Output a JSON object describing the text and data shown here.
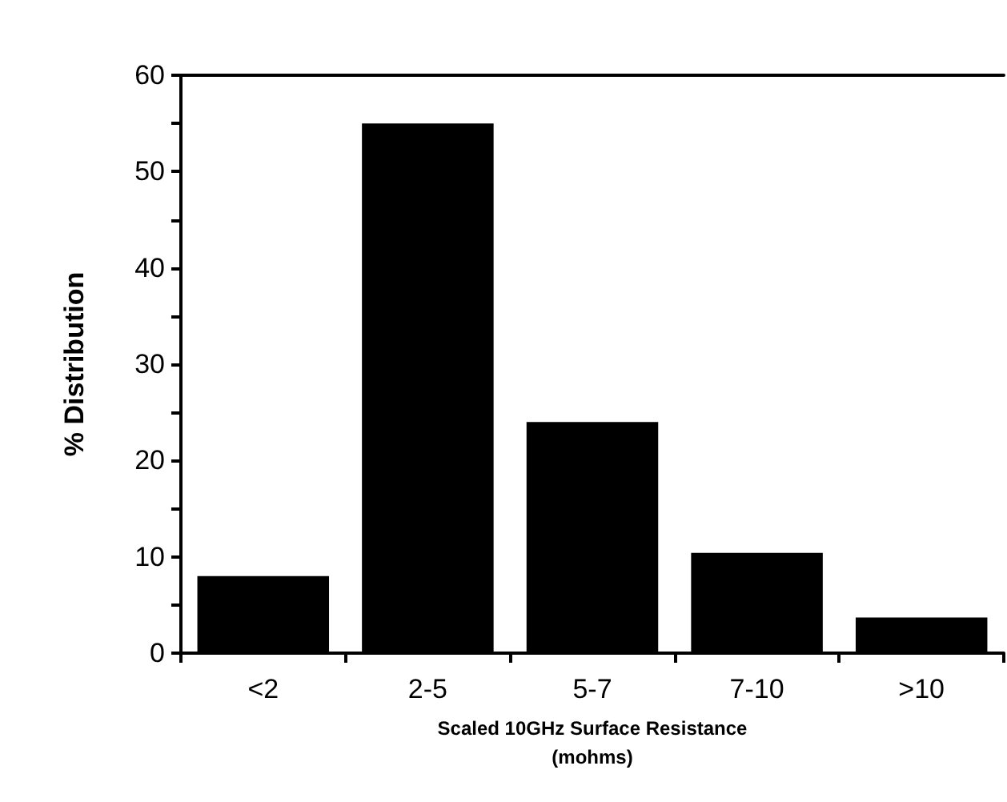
{
  "chart_data": {
    "type": "bar",
    "xlabel": "Scaled 10GHz Surface Resistance\n(mohms)",
    "ylabel": "% Distribution",
    "categories": [
      "<2",
      "2-5",
      "5-7",
      "7-10",
      ">10"
    ],
    "values": [
      8,
      55,
      24,
      10.4,
      3.7
    ],
    "color": "#000000",
    "ylim": [
      0,
      60
    ],
    "yticks": [
      0,
      {
        "value": 5,
        "label": null
      },
      10,
      {
        "value": 15,
        "label": null
      },
      20,
      {
        "value": 25,
        "label": null
      },
      30,
      {
        "value": 35,
        "label": null
      },
      40,
      {
        "value": 45,
        "label": null
      },
      50,
      {
        "value": 55,
        "label": null
      },
      60
    ],
    "grid": false
  }
}
